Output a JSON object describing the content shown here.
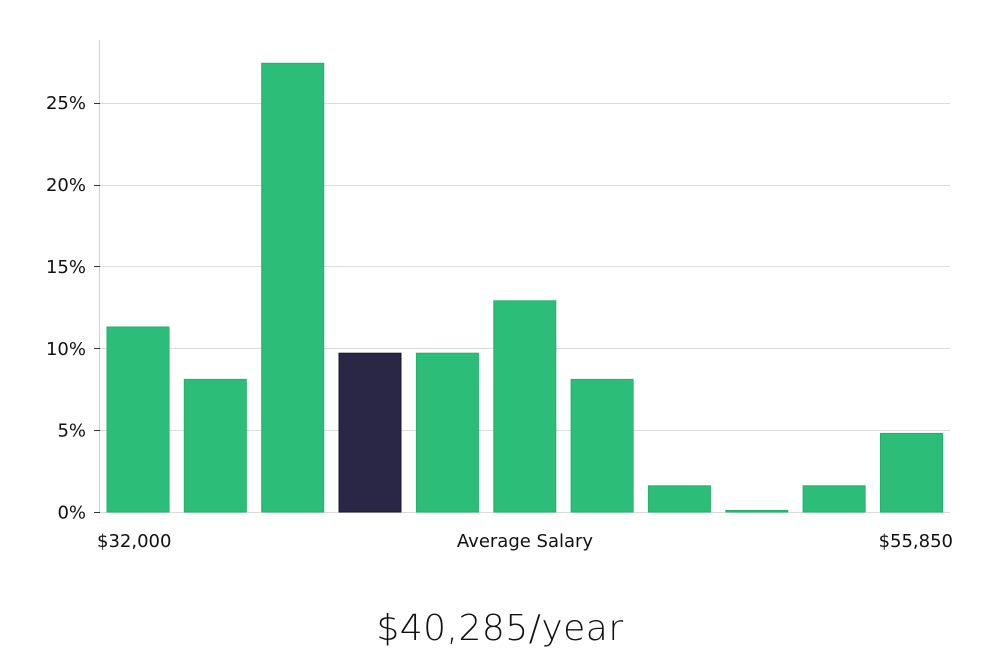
{
  "chart_data": {
    "type": "bar",
    "title": "",
    "xlabel": "Average Salary",
    "x_min_label": "$32,000",
    "x_max_label": "$55,850",
    "ylabel": "",
    "ylim": [
      0,
      29
    ],
    "yticks": [
      0,
      5,
      10,
      15,
      20,
      25
    ],
    "ytick_labels": [
      "0%",
      "5%",
      "10%",
      "15%",
      "20%",
      "25%"
    ],
    "bins": 11,
    "values": [
      11.3,
      8.1,
      27.4,
      9.7,
      9.7,
      12.9,
      8.1,
      1.6,
      0.0,
      1.6,
      4.8
    ],
    "highlight_index": 3,
    "colors": {
      "bar": "#2cbe78",
      "bar_edge": "#23b06c",
      "highlight": "#2a2646",
      "highlight_edge": "#1a1830",
      "grid": "#dcdcdc",
      "axis": "#d0d0d0"
    },
    "grid": true
  },
  "summary": {
    "salary_text": "$40,285/year"
  }
}
